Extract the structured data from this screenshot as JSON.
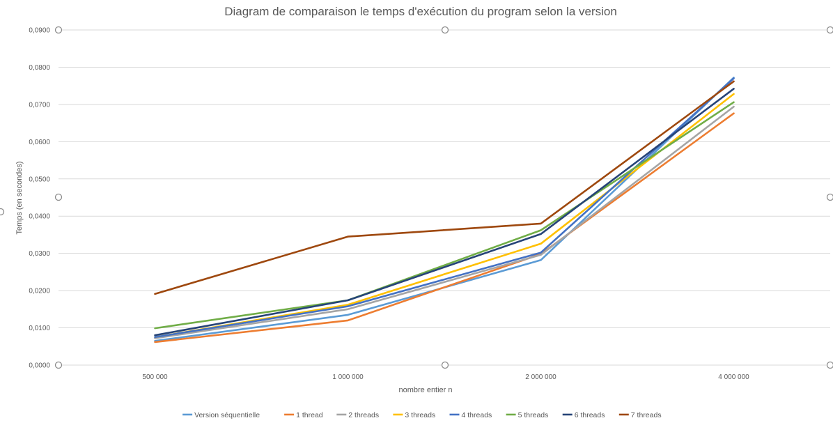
{
  "chart_data": {
    "type": "line",
    "title": "Diagram de comparaison le temps d'exécution du program selon la version",
    "xlabel": "nombre entier n",
    "ylabel": "Temps (en secondes)",
    "categories": [
      "500 000",
      "1 000 000",
      "2 000 000",
      "4 000 000"
    ],
    "y_ticks": [
      "0,0000",
      "0,0100",
      "0,0200",
      "0,0300",
      "0,0400",
      "0,0500",
      "0,0600",
      "0,0700",
      "0,0800",
      "0,0900"
    ],
    "ylim": [
      0,
      0.09
    ],
    "grid": true,
    "legend_position": "bottom",
    "series": [
      {
        "name": "Version séquentielle",
        "color": "#5b9bd5",
        "values": [
          0.0065,
          0.0135,
          0.0282,
          0.0772
        ]
      },
      {
        "name": "1 thread",
        "color": "#ed7d31",
        "values": [
          0.0062,
          0.012,
          0.0298,
          0.0676
        ]
      },
      {
        "name": "2 threads",
        "color": "#a5a5a5",
        "values": [
          0.0072,
          0.015,
          0.0296,
          0.0694
        ]
      },
      {
        "name": "3 threads",
        "color": "#ffc000",
        "values": [
          0.0075,
          0.0162,
          0.0326,
          0.0728
        ]
      },
      {
        "name": "4 threads",
        "color": "#4472c4",
        "values": [
          0.0075,
          0.0158,
          0.0302,
          0.077
        ]
      },
      {
        "name": "5 threads",
        "color": "#70ad47",
        "values": [
          0.0099,
          0.0174,
          0.0362,
          0.0706
        ]
      },
      {
        "name": "6 threads",
        "color": "#264478",
        "values": [
          0.008,
          0.0174,
          0.0352,
          0.0742
        ]
      },
      {
        "name": "7 threads",
        "color": "#9e480e",
        "values": [
          0.0191,
          0.0345,
          0.038,
          0.0762
        ]
      }
    ]
  }
}
